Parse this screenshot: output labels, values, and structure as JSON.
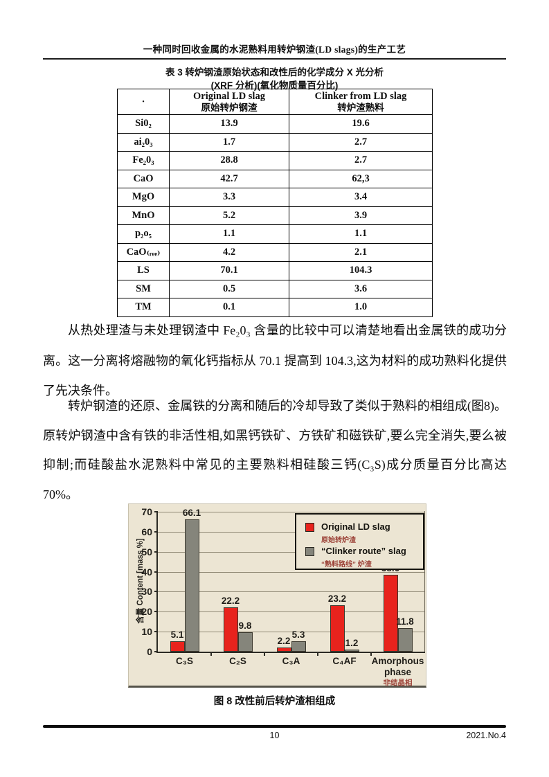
{
  "header": {
    "title": "一种同时回收金属的水泥熟料用转炉钢渣(LD slags)的生产工艺"
  },
  "table3": {
    "caption_line1": "表 3 转炉钢渣原始状态和改性后的化学成分 X 光分析",
    "caption_line2": "(XRF 分析)(氧化物质量百分比)",
    "header": {
      "col1": "·",
      "col2_en": "Original LD slag",
      "col2_zh": "原始转炉钢渣",
      "col3_en": "Clinker from LD slag",
      "col3_zh": "转炉渣熟料"
    },
    "rows": [
      [
        "Si0₂",
        "13.9",
        "19.6"
      ],
      [
        "ai₂0₃",
        "1.7",
        "2.7"
      ],
      [
        "Fe₂0₃",
        "28.8",
        "2.7"
      ],
      [
        "CaO",
        "42.7",
        "62,3"
      ],
      [
        "MgO",
        "3.3",
        "3.4"
      ],
      [
        "MnO",
        "5.2",
        "3.9"
      ],
      [
        "p₂o₅",
        "1.1",
        "1.1"
      ],
      [
        "CaO₍ᵣₑₑ₎",
        "4.2",
        "2.1"
      ],
      [
        "LS",
        "70.1",
        "104.3"
      ],
      [
        "SM",
        "0.5",
        "3.6"
      ],
      [
        "TM",
        "0.1",
        "1.0"
      ]
    ]
  },
  "paragraphs": {
    "p1": "从热处理渣与未处理钢渣中 Fe₂0₃ 含量的比较中可以清楚地看出金属铁的成功分离。这一分离将熔融物的氧化钙指标从 70.1 提高到 104.3,这为材料的成功熟料化提供了先决条件。",
    "p2": "转炉钢渣的还原、金属铁的分离和随后的冷却导致了类似于熟料的相组成(图8)。原转炉钢渣中含有铁的非活性相,如黑钙铁矿、方铁矿和磁铁矿,要么完全消失,要么被抑制;而硅酸盐水泥熟料中常见的主要熟料相硅酸三钙(C₃S)成分质量百分比高达 70%。"
  },
  "chart_data": {
    "type": "bar",
    "categories": [
      "C₃S",
      "C₂S",
      "C₃A",
      "C₄AF",
      "Amorphous phase"
    ],
    "category_sublabels": [
      "",
      "",
      "",
      "",
      "非结晶相"
    ],
    "series": [
      {
        "name": "Original LD slag",
        "name_zh": "原始转炉渣",
        "color": "#e8231d",
        "values": [
          5.1,
          22.2,
          2.2,
          23.2,
          38.6
        ]
      },
      {
        "name": "“Clinker route” slag",
        "name_zh": "“熟料路线” 炉渣",
        "color": "#85857b",
        "values": [
          66.1,
          9.8,
          5.3,
          1.2,
          11.8
        ]
      }
    ],
    "ylabel": "含量 Content [mass %]",
    "ylim": [
      0,
      70
    ],
    "yticks": [
      0,
      10,
      20,
      30,
      40,
      50,
      60,
      70
    ],
    "grid": true,
    "legend_position": "top-right",
    "background": "#ece5d3"
  },
  "figure8": {
    "caption": "图 8 改性前后转炉渣相组成"
  },
  "footer": {
    "page_number": "10",
    "issue": "2021.No.4"
  }
}
